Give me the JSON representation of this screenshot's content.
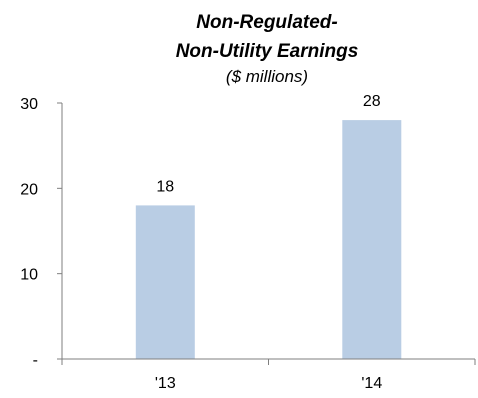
{
  "chart_data": {
    "type": "bar",
    "title_lines": [
      "Non-Regulated-",
      "Non-Utility Earnings"
    ],
    "subtitle": "($ millions)",
    "xlabel": "",
    "ylabel": "",
    "categories": [
      "'13",
      "'14"
    ],
    "values": [
      18,
      28
    ],
    "data_labels": [
      "18",
      "28"
    ],
    "ylim": [
      0,
      30
    ],
    "y_ticks": [
      0,
      10,
      20,
      30
    ],
    "y_tick_labels": [
      "-",
      "10",
      "20",
      "30"
    ],
    "bar_color": "#b9cde4",
    "axis_color": "#7f7f7f",
    "grid": false,
    "legend": "none"
  }
}
